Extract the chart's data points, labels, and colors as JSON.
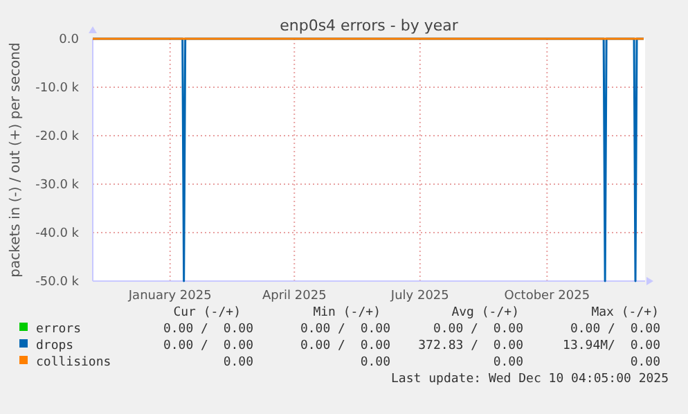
{
  "chart_data": {
    "type": "line",
    "title": "enp0s4 errors - by year",
    "ylabel": "packets in (-) / out (+) per second",
    "xlim": [
      "2024-11-06",
      "2025-12-11"
    ],
    "xticks": [
      {
        "value": "2025-01-01",
        "label": "January 2025"
      },
      {
        "value": "2025-04-01",
        "label": "April 2025"
      },
      {
        "value": "2025-07-01",
        "label": "July 2025"
      },
      {
        "value": "2025-10-01",
        "label": "October 2025"
      }
    ],
    "ylim": [
      -50000,
      0
    ],
    "yticks": [
      {
        "value": -50000,
        "label": "-50.0 k"
      },
      {
        "value": -40000,
        "label": "-40.0 k"
      },
      {
        "value": -30000,
        "label": "-30.0 k"
      },
      {
        "value": -20000,
        "label": "-20.0 k"
      },
      {
        "value": -10000,
        "label": "-10.0 k"
      },
      {
        "value": 0,
        "label": "0.0"
      }
    ],
    "grid": true,
    "legend": "bottom",
    "series": [
      {
        "name": "errors",
        "color": "#00cc00"
      },
      {
        "name": "drops",
        "color": "#0066b3",
        "x": [
          "2024-11-06",
          "2025-01-10",
          "2025-01-11",
          "2025-01-12",
          "2025-11-11",
          "2025-11-12",
          "2025-11-13",
          "2025-12-03",
          "2025-12-04",
          "2025-12-05",
          "2025-12-10"
        ],
        "values": [
          0,
          0,
          -50000,
          0,
          0,
          -50000,
          0,
          0,
          -50000,
          0,
          0
        ]
      },
      {
        "name": "collisions",
        "color": "#ff8000",
        "x": [
          "2024-11-06",
          "2025-12-10"
        ],
        "values": [
          0,
          0
        ]
      }
    ],
    "annotations": [
      "Cur (-/+)",
      "Min (-/+)",
      "Avg (-/+)",
      "Max (-/+)",
      "0.00 /  0.00",
      "0.00 /  0.00",
      "0.00 /  0.00",
      "0.00 /  0.00",
      "0.00 /  0.00",
      "0.00 /  0.00",
      "372.83 /  0.00",
      "13.94M/  0.00",
      "0.00",
      "0.00",
      "0.00",
      "0.00",
      "Last update: Wed Dec 10 04:05:00 2025"
    ]
  }
}
